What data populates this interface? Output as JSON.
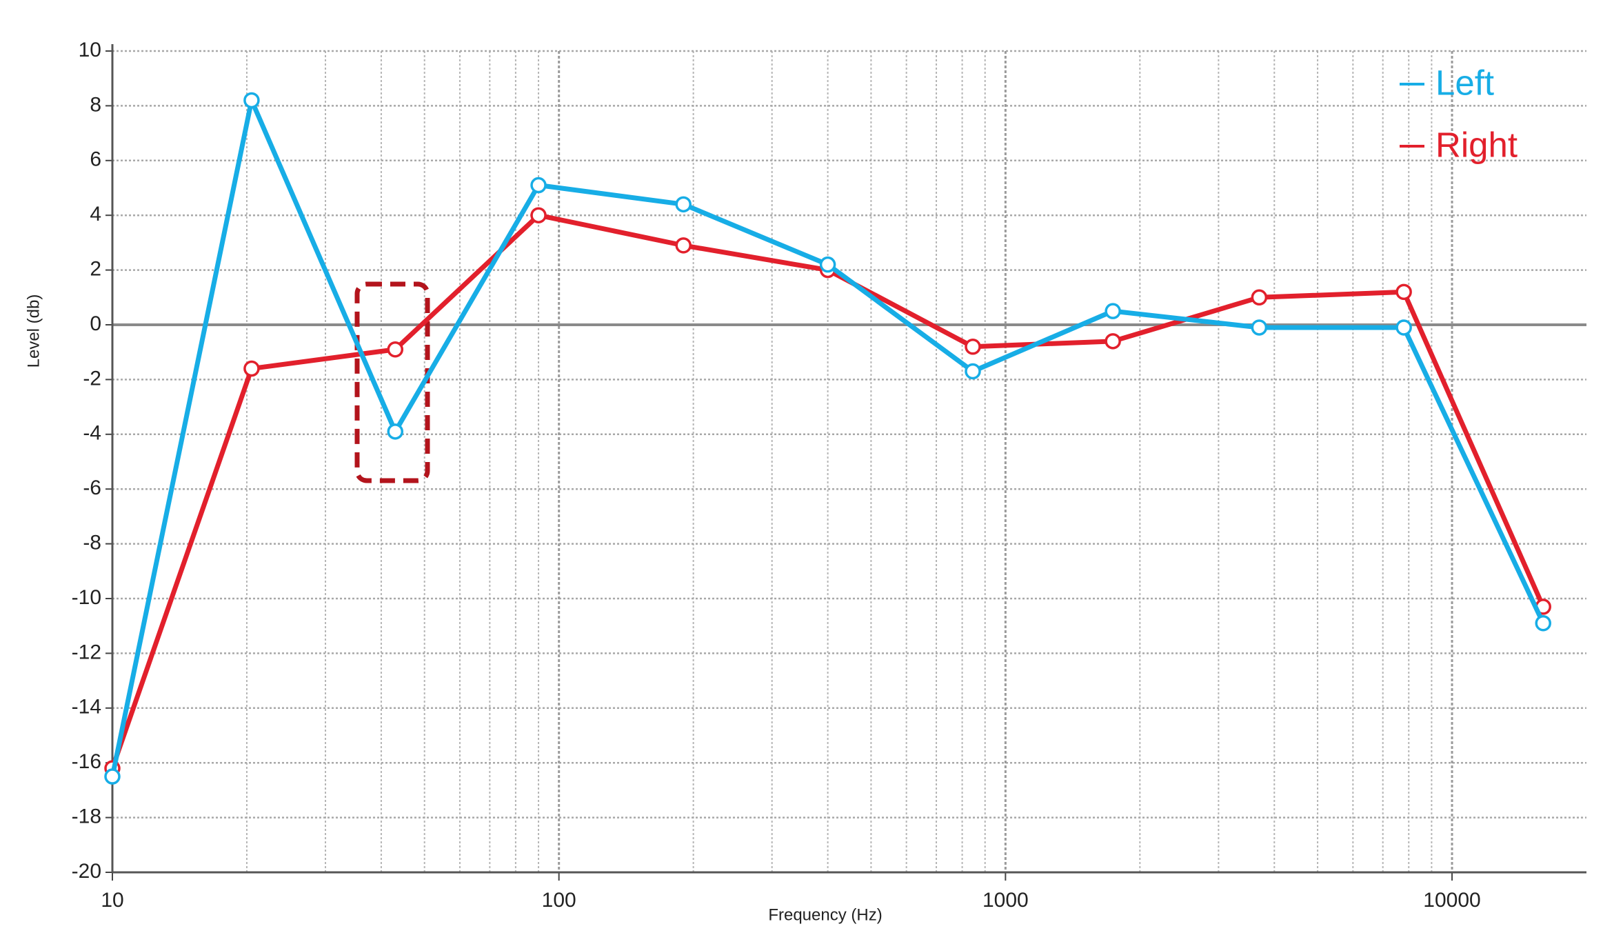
{
  "chart_data": {
    "type": "line",
    "x_label": "Frequency (Hz)",
    "y_label": "Level (db)",
    "xscale": "log",
    "x": [
      10,
      20.5,
      43,
      90,
      190,
      400,
      845,
      1740,
      3700,
      7800,
      16000
    ],
    "series": [
      {
        "name": "Left",
        "color": "#17ade6",
        "values": [
          -16.5,
          8.2,
          -3.9,
          5.1,
          4.4,
          2.2,
          -1.7,
          0.5,
          -0.1,
          -0.1,
          -10.9
        ]
      },
      {
        "name": "Right",
        "color": "#e2202c",
        "values": [
          -16.2,
          -1.6,
          -0.9,
          4.0,
          2.9,
          2.0,
          -0.8,
          -0.6,
          1.0,
          1.2,
          -10.3
        ]
      }
    ],
    "xlim": [
      10,
      20000
    ],
    "xticks": [
      10,
      100,
      1000,
      10000
    ],
    "ylim": [
      -20,
      10
    ],
    "yticks": [
      -20,
      -18,
      -16,
      -14,
      -12,
      -10,
      -8,
      -6,
      -4,
      -2,
      0,
      2,
      4,
      6,
      8,
      10
    ],
    "grid": true,
    "legend": "upper right"
  }
}
